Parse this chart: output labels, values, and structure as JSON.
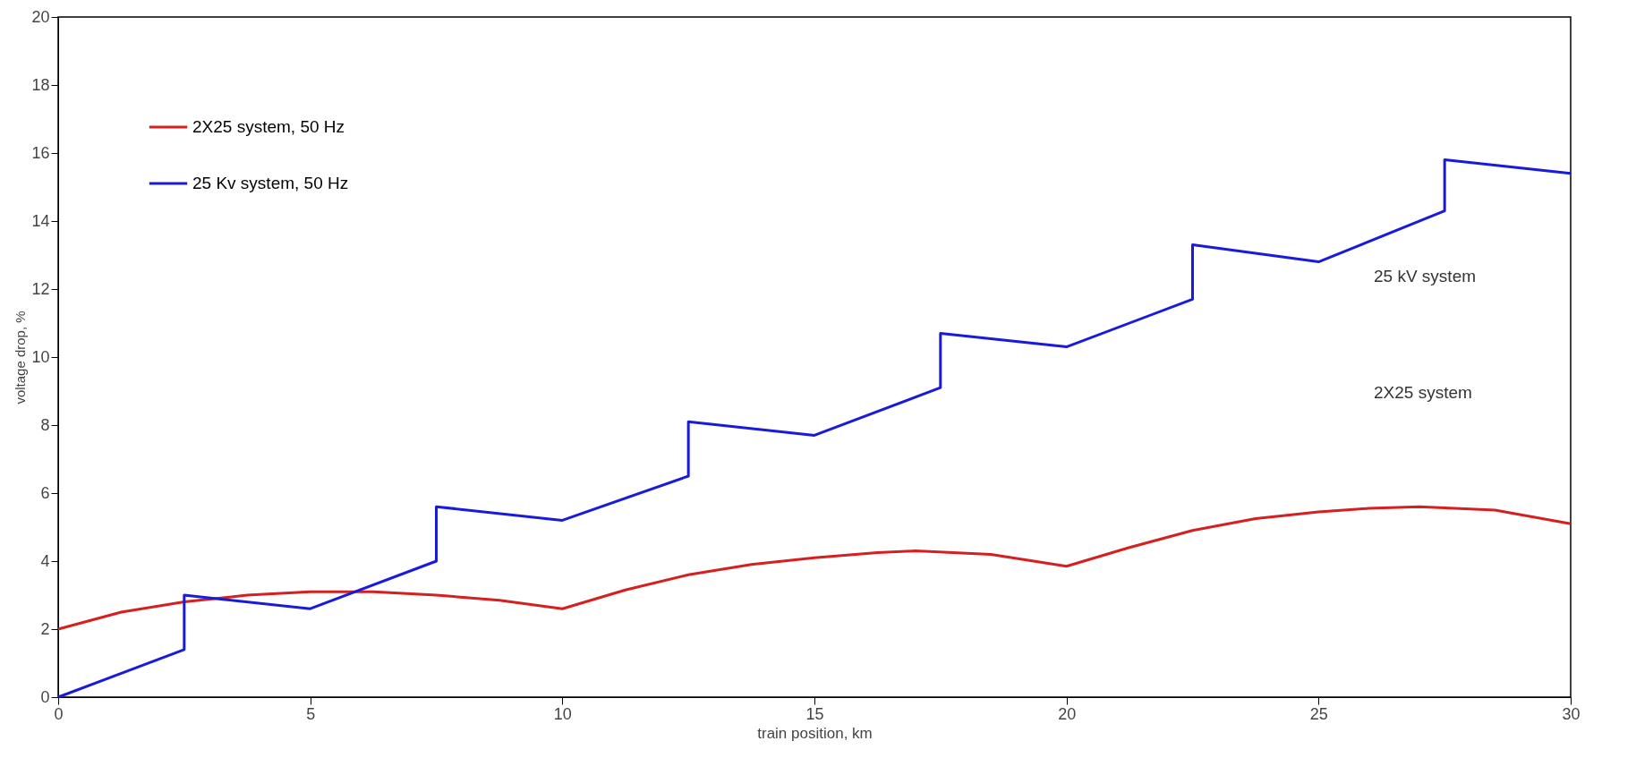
{
  "chart_data": {
    "type": "line",
    "xlabel": "train position, km",
    "ylabel": "voltage drop, %",
    "xlim": [
      0,
      30
    ],
    "xticks": [
      0,
      5,
      10,
      15,
      20,
      25,
      30
    ],
    "ylim": [
      0,
      20
    ],
    "yticks": [
      0,
      2,
      4,
      6,
      8,
      10,
      12,
      14,
      16,
      18,
      20
    ],
    "grid": false,
    "legend": "top left",
    "annotations": [
      "25 kV system",
      "2X25 system"
    ],
    "series": [
      {
        "name": "2X25 system, 50 Hz",
        "color": "#d42020",
        "x": [
          0,
          1.25,
          2.5,
          3.75,
          5,
          6.25,
          7.5,
          8.75,
          10,
          11.25,
          12.5,
          13.75,
          15,
          16.25,
          17,
          18.5,
          20,
          21.25,
          22.5,
          23.75,
          25,
          26,
          27,
          28.5,
          30
        ],
        "values": [
          2.0,
          2.5,
          2.8,
          3.0,
          3.1,
          3.1,
          3.0,
          2.85,
          2.6,
          3.15,
          3.6,
          3.9,
          4.1,
          4.25,
          4.3,
          4.2,
          3.85,
          4.4,
          4.9,
          5.25,
          5.45,
          5.55,
          5.6,
          5.5,
          5.1
        ]
      },
      {
        "name": "25 Kv system, 50 Hz",
        "color": "#1a1adb",
        "x": [
          0,
          2.5,
          2.5,
          5,
          7.5,
          7.5,
          10,
          12.5,
          12.5,
          15,
          17.5,
          17.5,
          20,
          22.5,
          22.5,
          25,
          27.5,
          27.5,
          30
        ],
        "values": [
          0,
          1.4,
          3.0,
          2.6,
          4.0,
          5.6,
          5.2,
          6.5,
          8.1,
          7.7,
          9.1,
          10.7,
          10.3,
          11.7,
          13.3,
          12.8,
          14.3,
          15.8,
          15.4
        ]
      }
    ]
  }
}
